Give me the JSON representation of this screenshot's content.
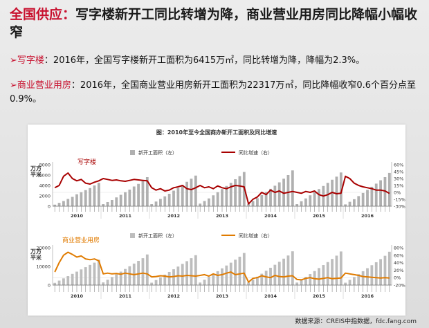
{
  "slide": {
    "title_red": "全国供应：",
    "title_black": "写字楼新开工同比转增为降，商业营业用房同比降幅小幅收窄",
    "point1_marker": "➢",
    "point1_keyword": "写字楼",
    "point1_text": "：2016年，全国写字楼新开工面积为6415万㎡，同比转增为降，降幅为2.3%。",
    "point2_marker": "➢",
    "point2_keyword": "商业营业用房",
    "point2_text": "：2016年，全国商业营业用房新开工面积为22317万㎡，同比降幅收窄0.6个百分点至0.9%。",
    "source": "数据来源：CREIS中指数据，fdc.fang.com"
  },
  "chart_data": [
    {
      "type": "bar",
      "title": "图：2010年至今全国商办新开工面积及同比增速",
      "panel_label": "写字楼",
      "ylabel": "万平方米",
      "ylim": [
        0,
        8000
      ],
      "y_ticks": [
        "8000",
        "6000",
        "4000",
        "2000",
        "0"
      ],
      "y2lim": [
        -30,
        60
      ],
      "y2_ticks": [
        "60%",
        "45%",
        "30%",
        "15%",
        "0%",
        "-15%",
        "-30%"
      ],
      "years": [
        "2010",
        "2011",
        "2012",
        "2013",
        "2014",
        "2015",
        "2016"
      ],
      "series": [
        {
          "name": "新开工面积（左）",
          "axis": "left",
          "color": "#b0b0b0",
          "values": [
            300,
            650,
            1000,
            1400,
            1800,
            2300,
            2700,
            3100,
            3500,
            4000,
            4500,
            400,
            800,
            1200,
            1700,
            2200,
            2700,
            3200,
            3800,
            4300,
            4900,
            5600,
            400,
            900,
            1400,
            1900,
            2400,
            3000,
            3500,
            4100,
            4700,
            5300,
            5900,
            500,
            1000,
            1500,
            2100,
            2700,
            3300,
            3900,
            4500,
            5200,
            5800,
            6600,
            450,
            1000,
            1550,
            2150,
            2750,
            3350,
            3950,
            4600,
            5300,
            6000,
            6900,
            400,
            950,
            1500,
            2100,
            2700,
            3300,
            3900,
            4500,
            5100,
            5700,
            6500,
            350,
            850,
            1350,
            1950,
            2550,
            3150,
            3750,
            4350,
            5000,
            5600,
            6415
          ]
        },
        {
          "name": "同比增速（右）",
          "axis": "right",
          "color": "#a80000",
          "values": [
            10,
            15,
            35,
            42,
            30,
            25,
            28,
            20,
            18,
            22,
            25,
            30,
            28,
            26,
            27,
            25,
            24,
            26,
            28,
            27,
            26,
            25,
            10,
            5,
            8,
            3,
            5,
            10,
            12,
            15,
            8,
            6,
            10,
            15,
            10,
            12,
            8,
            14,
            10,
            8,
            12,
            15,
            14,
            12,
            -25,
            -15,
            -10,
            0,
            -5,
            5,
            0,
            3,
            -2,
            0,
            2,
            0,
            -2,
            2,
            0,
            3,
            -5,
            -8,
            -5,
            0,
            -3,
            -2,
            35,
            30,
            20,
            15,
            12,
            10,
            8,
            5,
            5,
            3,
            -2.3
          ]
        }
      ]
    },
    {
      "type": "bar",
      "panel_label": "商业营业用房",
      "ylabel": "万平方米",
      "ylim": [
        0,
        25000
      ],
      "y_ticks": [
        "20000",
        "10000",
        "0"
      ],
      "y2lim": [
        -20,
        80
      ],
      "y2_ticks": [
        "80%",
        "60%",
        "40%",
        "20%",
        "0%",
        "-20%"
      ],
      "years": [
        "2010",
        "2011",
        "2012",
        "2013",
        "2014",
        "2015",
        "2016"
      ],
      "series": [
        {
          "name": "新开工面积（左）",
          "axis": "left",
          "color": "#bdbdbd",
          "values": [
            1500,
            3000,
            4500,
            6000,
            7500,
            9000,
            10500,
            12000,
            13500,
            15000,
            17000,
            1800,
            3600,
            5400,
            7200,
            9000,
            10800,
            12600,
            14400,
            16200,
            18000,
            20500,
            1600,
            3400,
            5200,
            7000,
            8800,
            10600,
            12400,
            14200,
            16000,
            18000,
            20000,
            1700,
            3600,
            5500,
            7400,
            9300,
            11200,
            13100,
            15000,
            17000,
            19000,
            21500,
            1800,
            3700,
            5600,
            7600,
            9600,
            11600,
            13600,
            15600,
            17700,
            19800,
            22600,
            1700,
            3600,
            5500,
            7400,
            9400,
            11400,
            13400,
            15400,
            17500,
            19700,
            22500,
            1600,
            3500,
            5400,
            7300,
            9300,
            11300,
            13300,
            15300,
            17400,
            19600,
            22317
          ]
        },
        {
          "name": "同比增速（右）",
          "axis": "right",
          "color": "#e07b00",
          "values": [
            15,
            40,
            60,
            68,
            62,
            55,
            58,
            50,
            48,
            50,
            45,
            10,
            12,
            10,
            11,
            9,
            12,
            10,
            8,
            10,
            12,
            10,
            2,
            3,
            5,
            4,
            2,
            3,
            5,
            4,
            6,
            5,
            4,
            6,
            8,
            4,
            10,
            6,
            8,
            12,
            15,
            8,
            10,
            12,
            -12,
            -2,
            0,
            5,
            2,
            0,
            6,
            3,
            2,
            4,
            5,
            -5,
            -6,
            -2,
            0,
            -3,
            -4,
            -2,
            0,
            -3,
            -2,
            -1,
            12,
            10,
            8,
            6,
            3,
            2,
            1,
            0,
            -1,
            0,
            -0.9
          ]
        }
      ]
    }
  ]
}
